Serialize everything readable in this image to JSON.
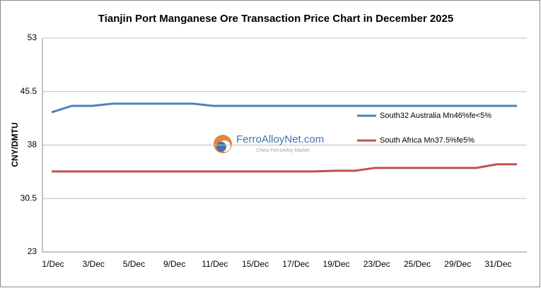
{
  "chart_data": {
    "type": "line",
    "title": "Tianjin Port Manganese Ore Transaction Price Chart in December 2025",
    "y_label": "CNY/DMTU",
    "categories": [
      "1/Dec",
      null,
      "3/Dec",
      null,
      "5/Dec",
      null,
      "9/Dec",
      null,
      "11/Dec",
      null,
      "15/Dec",
      null,
      "17/Dec",
      null,
      "19/Dec",
      null,
      "23/Dec",
      null,
      "25/Dec",
      null,
      "29/Dec",
      null,
      "31/Dec",
      null
    ],
    "series": [
      {
        "name": "South32 Australia Mn46%fe<5%",
        "color": "#4f81bd",
        "values": [
          42.6,
          43.5,
          43.5,
          43.8,
          43.8,
          43.8,
          43.8,
          43.8,
          43.5,
          43.5,
          43.5,
          43.5,
          43.5,
          43.5,
          43.5,
          43.5,
          43.5,
          43.5,
          43.5,
          43.5,
          43.5,
          43.5,
          43.5,
          43.5
        ]
      },
      {
        "name": "South Africa Mn37.5%fe5%",
        "color": "#c0504d",
        "values": [
          34.3,
          34.3,
          34.3,
          34.3,
          34.3,
          34.3,
          34.3,
          34.3,
          34.3,
          34.3,
          34.3,
          34.3,
          34.3,
          34.3,
          34.4,
          34.4,
          34.8,
          34.8,
          34.8,
          34.8,
          34.8,
          34.8,
          35.3,
          35.3
        ]
      }
    ],
    "ylim": [
      23,
      53
    ],
    "yticks": [
      23,
      30.5,
      38,
      45.5,
      53
    ],
    "grid": true,
    "legend": "right",
    "watermark": {
      "title": "FerroAlloyNet.com",
      "subtitle": "China FerroAlloy Market"
    }
  }
}
